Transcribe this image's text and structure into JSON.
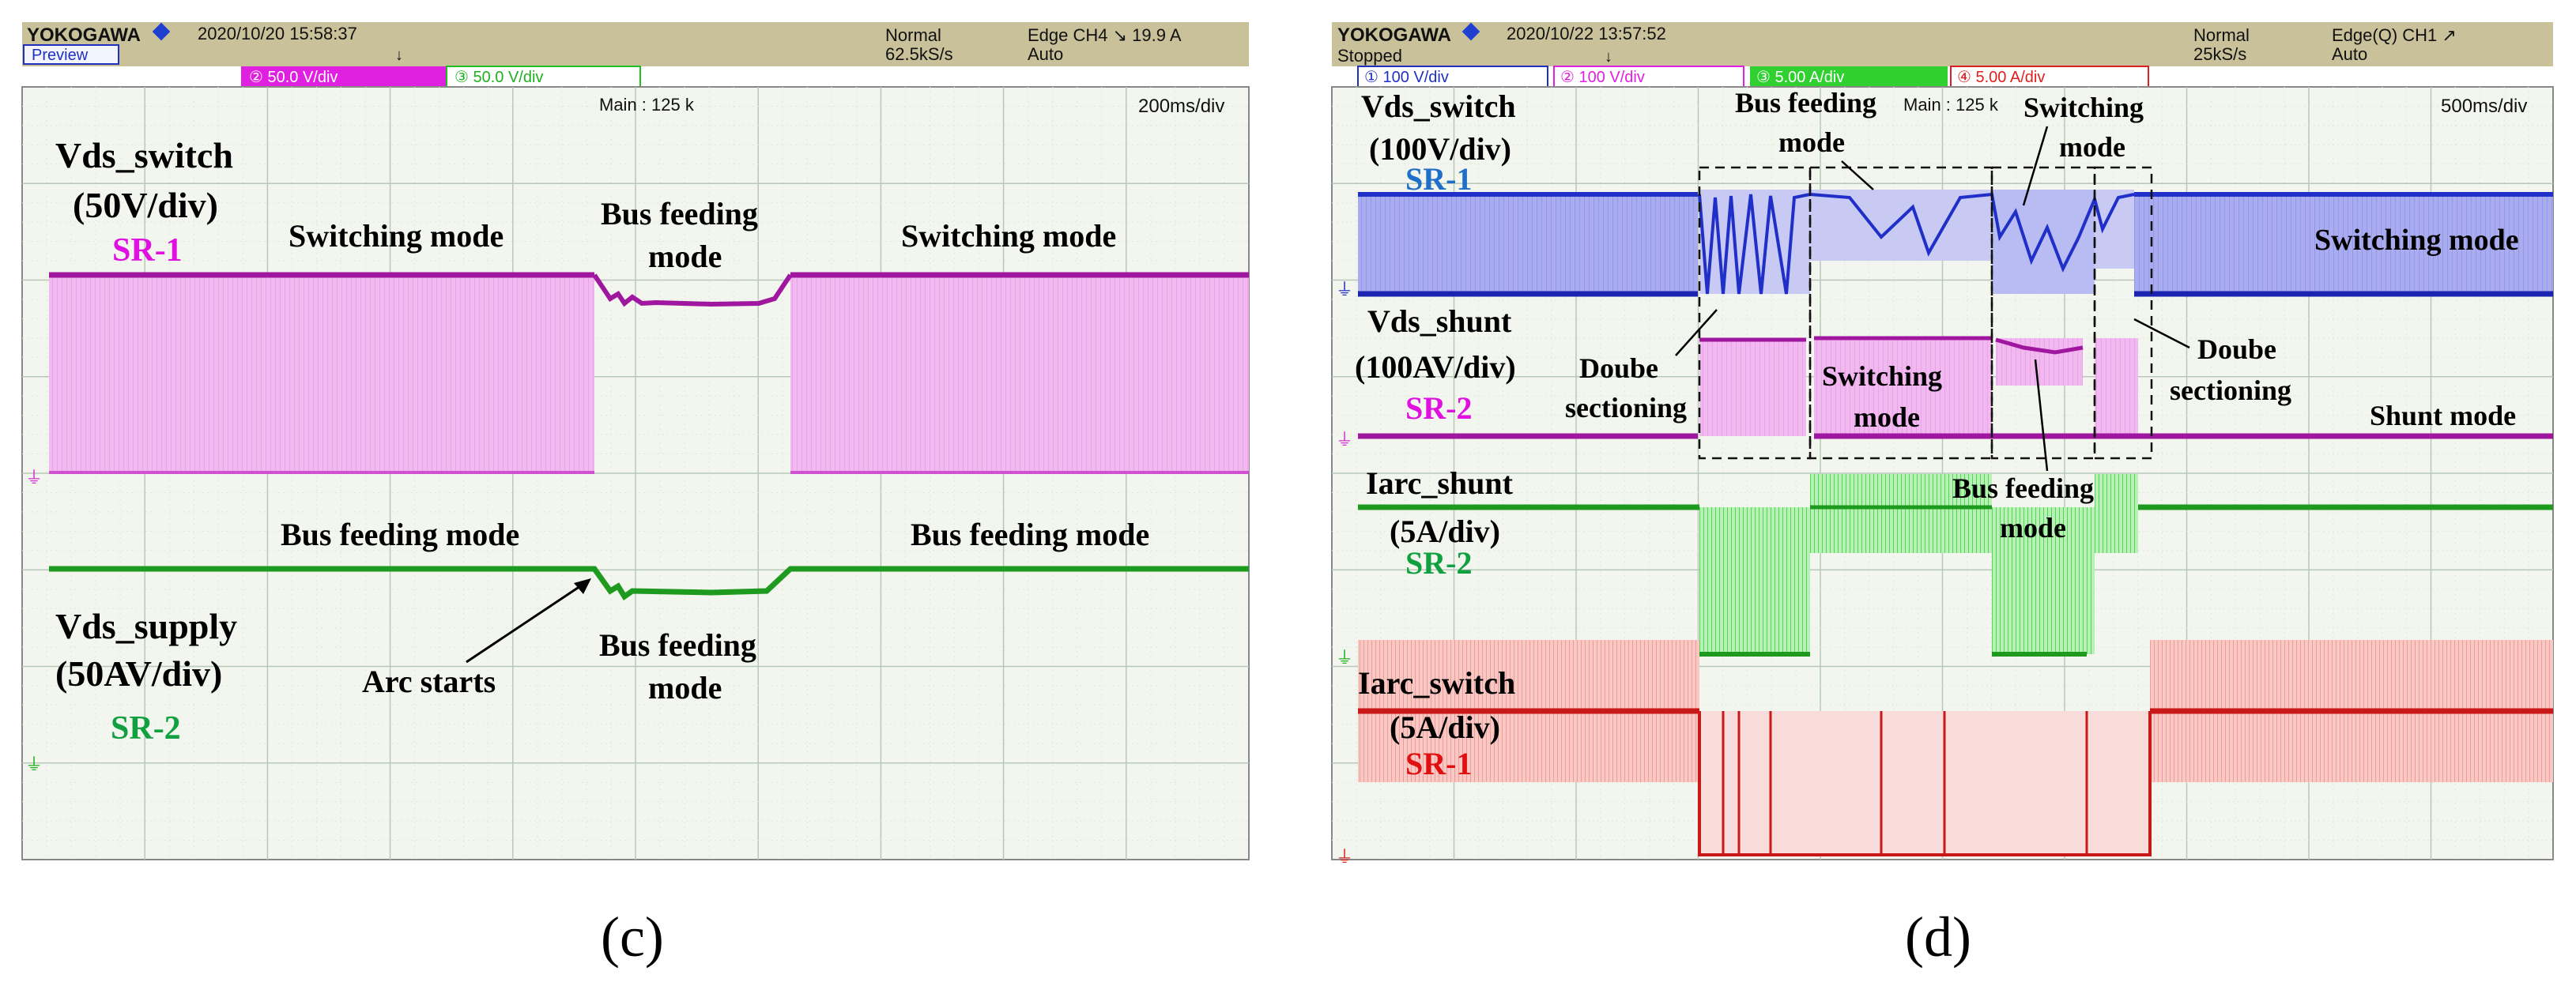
{
  "colors": {
    "header_bg": "#c9c19a",
    "screen_bg": "#f2f6ee",
    "grid": "#b8c8b8",
    "ch_blue": "#1f2fc8",
    "ch_magenta": "#a0179f",
    "ch_magenta_fill": "#f2b8f0",
    "ch_green": "#1e9a1e",
    "ch_red": "#c81818",
    "ch_red_fill": "#f4b4b0",
    "label_blue": "#1f6fc8",
    "label_magenta": "#e010e0",
    "label_green": "#10a040",
    "label_red": "#e01010"
  },
  "chart_data": [
    {
      "type": "line",
      "panel_label": "(c)",
      "header": {
        "brand": "YOKOGAWA",
        "timestamp": "2020/10/20 15:58:37",
        "status": "Preview",
        "trigger_mode": "Normal",
        "sample_rate": "62.5kS/s",
        "trigger": "Edge CH4 ↘ 19.9 A",
        "auto": "Auto",
        "main": "Main : 125 k",
        "timebase": "200ms/div",
        "channel_tags": [
          "② 50.0 V/div",
          "③ 50.0 V/div"
        ]
      },
      "grid": {
        "x_divisions": 10,
        "y_divisions": 8
      },
      "series": [
        {
          "name": "Vds_switch",
          "scale": "(50V/div)",
          "device": "SR-1",
          "color": "ch_magenta",
          "x_div": [
            0,
            4.5,
            4.5,
            6.2,
            6.2,
            10
          ],
          "segments": [
            "switching",
            "bus feeding",
            "switching"
          ]
        },
        {
          "name": "Vds_supply",
          "scale": "(50AV/div)",
          "device": "SR-2",
          "color": "ch_green",
          "x_div": [
            0,
            4.5,
            6.2,
            10
          ],
          "segments": [
            "bus feeding",
            "bus feeding (arc)",
            "bus feeding"
          ]
        }
      ],
      "annotations": {
        "switching_left": "Switching mode",
        "bus_feeding_top_1": "Bus feeding",
        "bus_feeding_top_2": "mode",
        "switching_right": "Switching mode",
        "bus_feeding_left": "Bus feeding mode",
        "bus_feeding_right": "Bus feeding mode",
        "arc_starts": "Arc starts",
        "bus_feeding_bottom_1": "Bus feeding",
        "bus_feeding_bottom_2": "mode"
      }
    },
    {
      "type": "line",
      "panel_label": "(d)",
      "header": {
        "brand": "YOKOGAWA",
        "timestamp": "2020/10/22 13:57:52",
        "status": "Stopped",
        "trigger_mode": "Normal",
        "sample_rate": "25kS/s",
        "trigger": "Edge(Q) CH1 ↗",
        "auto": "Auto",
        "main": "Main : 125 k",
        "timebase": "500ms/div",
        "channel_tags": [
          "① 100 V/div",
          "② 100 V/div",
          "③ 5.00 A/div",
          "④ 5.00 A/div"
        ]
      },
      "grid": {
        "x_divisions": 10,
        "y_divisions": 8
      },
      "series": [
        {
          "name": "Vds_switch",
          "scale": "(100V/div)",
          "device": "SR-1",
          "color": "ch_blue"
        },
        {
          "name": "Vds_shunt",
          "scale": "(100AV/div)",
          "device": "SR-2",
          "color": "ch_magenta"
        },
        {
          "name": "Iarc_shunt",
          "scale": "(5A/div)",
          "device": "SR-2",
          "color": "ch_green"
        },
        {
          "name": "Iarc_switch",
          "scale": "(5A/div)",
          "device": "SR-1",
          "color": "ch_red"
        }
      ],
      "annotations": {
        "bus_feeding_top_1": "Bus feeding",
        "bus_feeding_top_2": "mode",
        "switching_top_1": "Switching",
        "switching_top_2": "mode",
        "switching_right": "Switching mode",
        "doube_left_1": "Doube",
        "doube_left_2": "sectioning",
        "switching_mid_1": "Switching",
        "switching_mid_2": "mode",
        "doube_right_1": "Doube",
        "doube_right_2": "sectioning",
        "shunt_mode": "Shunt mode",
        "bus_feeding_mid_1": "Bus feeding",
        "bus_feeding_mid_2": "mode"
      }
    }
  ]
}
